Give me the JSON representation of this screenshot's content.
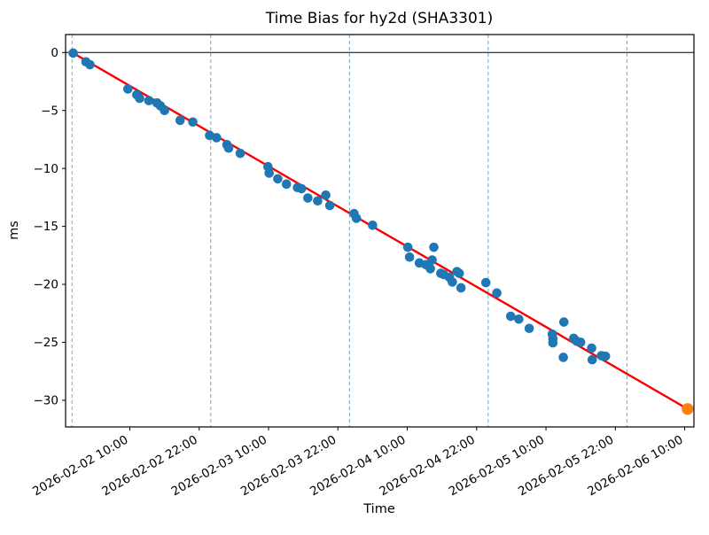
{
  "background": "#ffffff",
  "colors": {
    "points": "#1f77b4",
    "highlighted_point": "#ff7f0e",
    "trend_line": "#ff0000",
    "day_gridline": "#1f77b4",
    "zero_line": "#000000",
    "axis": "#000000"
  },
  "chart_data": {
    "type": "scatter",
    "title": "Time Bias for hy2d (SHA3301)",
    "xlabel": "Time",
    "ylabel": "ms",
    "grid": "vertical dashed lines at each midnight",
    "legend": "none",
    "x_range": [
      "2026-02-01 22:53",
      "2026-02-06 11:36"
    ],
    "y_range": [
      1.55,
      -32.3
    ],
    "x_ticks": [
      "2026-02-02 10:00",
      "2026-02-02 22:00",
      "2026-02-03 10:00",
      "2026-02-03 22:00",
      "2026-02-04 10:00",
      "2026-02-04 22:00",
      "2026-02-05 10:00",
      "2026-02-05 22:00",
      "2026-02-06 10:00"
    ],
    "day_gridlines": [
      "2026-02-02 00:00",
      "2026-02-03 00:00",
      "2026-02-04 00:00",
      "2026-02-05 00:00",
      "2026-02-06 00:00"
    ],
    "y_ticks": [
      0,
      -5,
      -10,
      -15,
      -20,
      -25,
      -30
    ],
    "y_tick_labels": [
      "0",
      "−5",
      "−10",
      "−15",
      "−20",
      "−25",
      "−30"
    ],
    "zero_line_y": 0,
    "trend_line": {
      "color": "#ff0000",
      "width": 2.4,
      "from": [
        "2026-02-02 00:12",
        -0.05
      ],
      "to": [
        "2026-02-06 10:30",
        -30.75
      ]
    },
    "series": [
      {
        "name": "bias-samples",
        "color": "#1f77b4",
        "marker_radius": 5.3,
        "points": [
          [
            "2026-02-02 00:12",
            -0.05
          ],
          [
            "2026-02-02 02:24",
            -0.8
          ],
          [
            "2026-02-02 03:06",
            -1.05
          ],
          [
            "2026-02-02 09:40",
            -3.15
          ],
          [
            "2026-02-02 11:12",
            -3.65
          ],
          [
            "2026-02-02 11:42",
            -3.95
          ],
          [
            "2026-02-02 13:18",
            -4.15
          ],
          [
            "2026-02-02 14:42",
            -4.35
          ],
          [
            "2026-02-02 15:18",
            -4.6
          ],
          [
            "2026-02-02 16:00",
            -5.0
          ],
          [
            "2026-02-02 18:42",
            -5.85
          ],
          [
            "2026-02-02 20:54",
            -6.0
          ],
          [
            "2026-02-02 23:48",
            -7.15
          ],
          [
            "2026-02-03 01:00",
            -7.35
          ],
          [
            "2026-02-03 02:48",
            -7.95
          ],
          [
            "2026-02-03 03:06",
            -8.25
          ],
          [
            "2026-02-03 05:06",
            -8.7
          ],
          [
            "2026-02-03 09:54",
            -9.85
          ],
          [
            "2026-02-03 10:06",
            -10.4
          ],
          [
            "2026-02-03 11:36",
            -10.9
          ],
          [
            "2026-02-03 13:06",
            -11.35
          ],
          [
            "2026-02-03 15:00",
            -11.65
          ],
          [
            "2026-02-03 15:42",
            -11.75
          ],
          [
            "2026-02-03 16:48",
            -12.55
          ],
          [
            "2026-02-03 18:30",
            -12.8
          ],
          [
            "2026-02-03 19:54",
            -12.3
          ],
          [
            "2026-02-03 20:36",
            -13.2
          ],
          [
            "2026-02-04 00:48",
            -13.9
          ],
          [
            "2026-02-04 01:12",
            -14.3
          ],
          [
            "2026-02-04 04:00",
            -14.9
          ],
          [
            "2026-02-04 10:06",
            -16.8
          ],
          [
            "2026-02-04 10:24",
            -17.65
          ],
          [
            "2026-02-04 12:06",
            -18.15
          ],
          [
            "2026-02-04 13:12",
            -18.3
          ],
          [
            "2026-02-04 14:00",
            -18.65
          ],
          [
            "2026-02-04 14:18",
            -17.9
          ],
          [
            "2026-02-04 14:36",
            -16.8
          ],
          [
            "2026-02-04 15:48",
            -19.05
          ],
          [
            "2026-02-04 16:18",
            -19.15
          ],
          [
            "2026-02-04 17:18",
            -19.4
          ],
          [
            "2026-02-04 17:48",
            -19.8
          ],
          [
            "2026-02-04 18:36",
            -18.9
          ],
          [
            "2026-02-04 19:00",
            -19.05
          ],
          [
            "2026-02-04 19:18",
            -20.3
          ],
          [
            "2026-02-04 23:36",
            -19.85
          ],
          [
            "2026-02-05 01:30",
            -20.75
          ],
          [
            "2026-02-05 03:54",
            -22.75
          ],
          [
            "2026-02-05 05:18",
            -23.0
          ],
          [
            "2026-02-05 07:06",
            -23.8
          ],
          [
            "2026-02-05 11:06",
            -24.3
          ],
          [
            "2026-02-05 11:12",
            -24.7
          ],
          [
            "2026-02-05 11:12",
            -25.05
          ],
          [
            "2026-02-05 13:00",
            -26.3
          ],
          [
            "2026-02-05 13:06",
            -23.25
          ],
          [
            "2026-02-05 14:48",
            -24.65
          ],
          [
            "2026-02-05 15:18",
            -24.9
          ],
          [
            "2026-02-05 16:00",
            -25.0
          ],
          [
            "2026-02-05 17:54",
            -25.5
          ],
          [
            "2026-02-05 18:00",
            -26.5
          ],
          [
            "2026-02-05 19:36",
            -26.15
          ],
          [
            "2026-02-05 20:18",
            -26.2
          ]
        ]
      },
      {
        "name": "highlighted-sample",
        "color": "#ff7f0e",
        "marker_radius": 6.6,
        "points": [
          [
            "2026-02-06 10:30",
            -30.75
          ]
        ]
      }
    ]
  }
}
